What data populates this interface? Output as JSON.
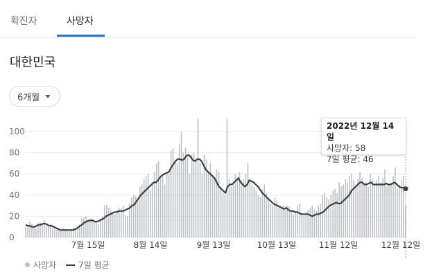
{
  "tabs": [
    {
      "label": "확진자",
      "active": false
    },
    {
      "label": "사망자",
      "active": true
    }
  ],
  "region": "대한민국",
  "range_selector": {
    "label": "6개월"
  },
  "tooltip": {
    "date": "2022년 12월 14일",
    "deaths_line": "사망자: 58",
    "avg_line": "7일 평균: 46"
  },
  "legend": {
    "daily": "사망자",
    "average": "7일 평균"
  },
  "colors": {
    "bars": "#bdc1c6",
    "line": "#3c4043",
    "tab_accent": "#1a73e8",
    "grid": "#e8eaed"
  },
  "chart_data": {
    "type": "bar",
    "y_ticks": [
      "0",
      "20",
      "40",
      "60",
      "80",
      "100"
    ],
    "ylim": [
      0,
      110
    ],
    "x_ticks": [
      "7월 15일",
      "8월 14일",
      "9월 13일",
      "10월 13일",
      "11월 12일",
      "12월 12일"
    ],
    "grid": true,
    "series": [
      {
        "name": "사망자",
        "type": "bar"
      },
      {
        "name": "7일 평균",
        "type": "line"
      }
    ],
    "daily": [
      10,
      12,
      15,
      13,
      11,
      9,
      12,
      14,
      13,
      16,
      11,
      10,
      13,
      9,
      8,
      7,
      8,
      6,
      9,
      8,
      7,
      6,
      8,
      9,
      7,
      10,
      12,
      18,
      19,
      20,
      15,
      17,
      18,
      16,
      14,
      13,
      17,
      20,
      30,
      31,
      28,
      25,
      24,
      22,
      26,
      28,
      27,
      30,
      21,
      20,
      32,
      38,
      40,
      39,
      35,
      48,
      50,
      55,
      58,
      60,
      45,
      52,
      62,
      70,
      72,
      56,
      58,
      50,
      62,
      60,
      82,
      84,
      72,
      70,
      88,
      100,
      80,
      85,
      75,
      60,
      78,
      80,
      72,
      112,
      70,
      60,
      78,
      74,
      62,
      70,
      58,
      55,
      64,
      62,
      48,
      42,
      40,
      112,
      55,
      48,
      52,
      60,
      56,
      62,
      54,
      55,
      60,
      70,
      52,
      50,
      48,
      44,
      40,
      38,
      45,
      50,
      42,
      36,
      32,
      30,
      38,
      34,
      30,
      28,
      30,
      26,
      30,
      29,
      24,
      22,
      25,
      30,
      32,
      22,
      20,
      24,
      26,
      28,
      30,
      26,
      25,
      30,
      32,
      40,
      42,
      38,
      36,
      40,
      44,
      46,
      42,
      52,
      48,
      50,
      55,
      52,
      58,
      60,
      54,
      50,
      55,
      62,
      56,
      50,
      52,
      48,
      60,
      55,
      50,
      54,
      58,
      52,
      56,
      64,
      48,
      50,
      52,
      58,
      66,
      46,
      50,
      54,
      58,
      30
    ],
    "avg": [
      12,
      11,
      11,
      10,
      10,
      11,
      12,
      12,
      13,
      13,
      12,
      11,
      11,
      10,
      9,
      8,
      7,
      7,
      7,
      7,
      7,
      7,
      7,
      8,
      9,
      11,
      12,
      14,
      15,
      16,
      16,
      16,
      15,
      15,
      16,
      17,
      18,
      20,
      21,
      22,
      23,
      24,
      24,
      25,
      25,
      25,
      26,
      27,
      28,
      30,
      31,
      34,
      37,
      40,
      42,
      44,
      46,
      48,
      50,
      52,
      52,
      54,
      57,
      59,
      60,
      61,
      62,
      66,
      69,
      72,
      74,
      74,
      73,
      74,
      77,
      78,
      76,
      73,
      72,
      74,
      74,
      72,
      68,
      64,
      62,
      60,
      58,
      56,
      52,
      48,
      46,
      44,
      42,
      48,
      50,
      50,
      52,
      54,
      56,
      52,
      50,
      48,
      50,
      54,
      53,
      52,
      50,
      48,
      45,
      42,
      40,
      38,
      36,
      34,
      32,
      31,
      30,
      29,
      28,
      27,
      28,
      26,
      25,
      25,
      24,
      24,
      23,
      22,
      22,
      22,
      22,
      21,
      20,
      21,
      22,
      22,
      23,
      24,
      26,
      28,
      30,
      31,
      32,
      33,
      32,
      32,
      34,
      36,
      38,
      40,
      44,
      46,
      48,
      50,
      52,
      52,
      50,
      50,
      51,
      52,
      50,
      50,
      50,
      50,
      50,
      50,
      51,
      50,
      50,
      51,
      52,
      50,
      48,
      47,
      47,
      46
    ]
  }
}
